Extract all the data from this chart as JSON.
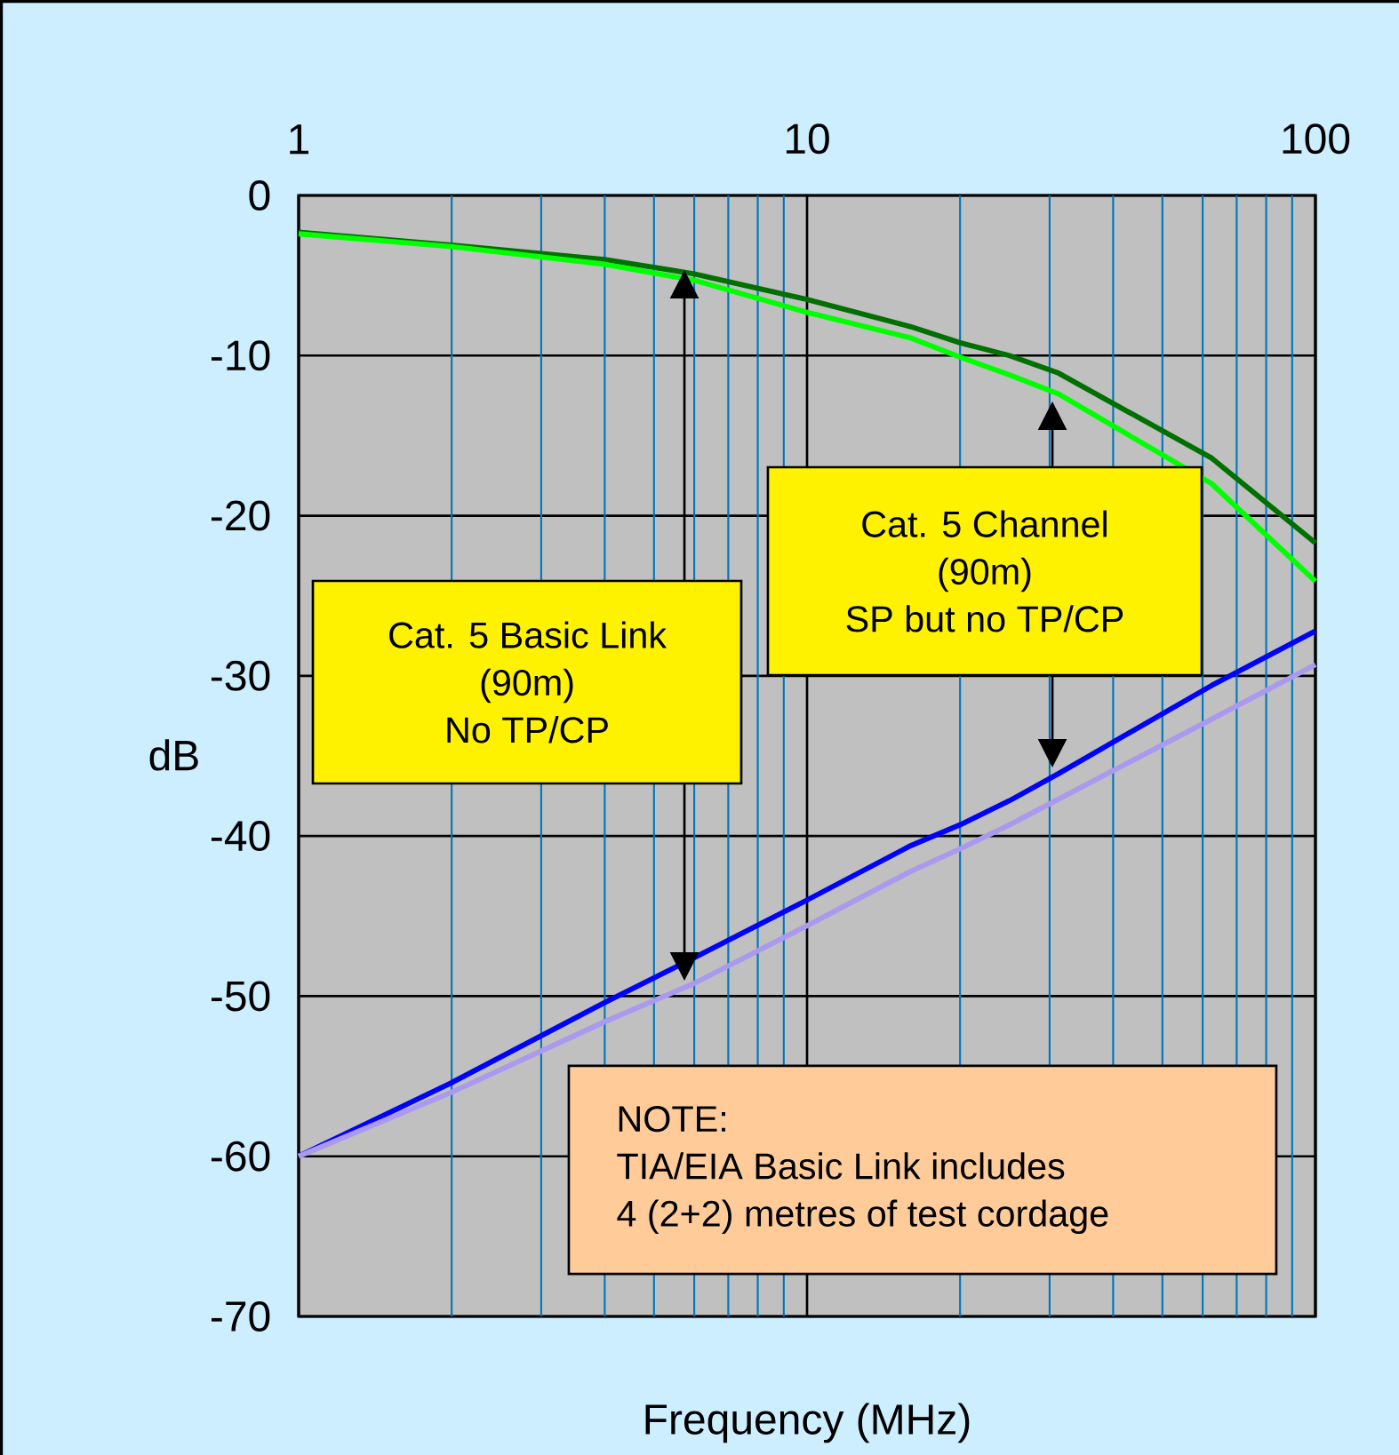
{
  "chart_data": {
    "type": "line",
    "xlabel": "Frequency (MHz)",
    "ylabel": "dB",
    "log": "x",
    "grid": true,
    "xlim": [
      1,
      100
    ],
    "xticks": [
      1,
      {
        "value": 2,
        "label": null
      },
      {
        "value": 3,
        "label": null
      },
      {
        "value": 4,
        "label": null
      },
      {
        "value": 5,
        "label": null
      },
      {
        "value": 6,
        "label": null
      },
      {
        "value": 7,
        "label": null
      },
      {
        "value": 8,
        "label": null
      },
      {
        "value": 9,
        "label": null
      },
      10,
      {
        "value": 20,
        "label": null
      },
      {
        "value": 30,
        "label": null
      },
      {
        "value": 40,
        "label": null
      },
      {
        "value": 50,
        "label": null
      },
      {
        "value": 60,
        "label": null
      },
      {
        "value": 70,
        "label": null
      },
      {
        "value": 80,
        "label": null
      },
      {
        "value": 90,
        "label": null
      },
      100
    ],
    "ylim": [
      -70,
      0
    ],
    "yticks": [
      -70,
      -60,
      -50,
      -40,
      -30,
      -20,
      -10,
      0
    ],
    "x": [
      1,
      2,
      4,
      6,
      10,
      16,
      20,
      25,
      31.25,
      62.5,
      100
    ],
    "series": [
      {
        "color": "#007000",
        "values": [
          -2.3,
          -3.1,
          -4.0,
          -4.9,
          -6.5,
          -8.2,
          -9.2,
          -10.0,
          -11.1,
          -16.4,
          -21.7
        ]
      },
      {
        "color": "#00ff00",
        "values": [
          -2.4,
          -3.2,
          -4.3,
          -5.3,
          -7.3,
          -8.9,
          -10.1,
          -11.2,
          -12.4,
          -18.0,
          -24.1
        ]
      },
      {
        "color": "#0000ff",
        "values": [
          -60,
          -55.4,
          -50.4,
          -47.6,
          -44.0,
          -40.6,
          -39.3,
          -37.8,
          -36.1,
          -30.6,
          -27.2
        ]
      },
      {
        "color": "#aa99ee",
        "values": [
          -60,
          -56.0,
          -51.6,
          -49.2,
          -45.6,
          -42.2,
          -40.8,
          -39.3,
          -37.7,
          -32.7,
          -29.3
        ]
      }
    ],
    "annotations": [
      "Cat. 5 Basic Link",
      "(90m)",
      "No TP/CP",
      "Cat. 5 Channel",
      "(90m)",
      "SP but no TP/CP",
      "NOTE:",
      "TIA/EIA Basic Link includes",
      "4 (2+2) metres of test cordage"
    ]
  }
}
